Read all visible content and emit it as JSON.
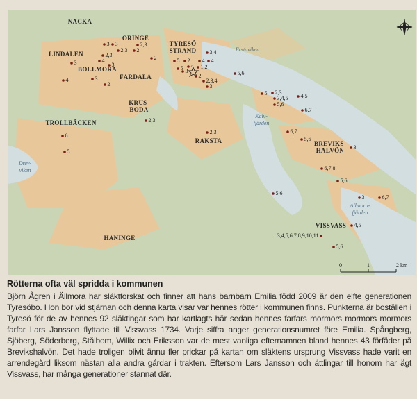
{
  "map": {
    "place_names": [
      {
        "lines": [
          "NACKA"
        ]
      },
      {
        "lines": [
          "ÖRINGE"
        ]
      },
      {
        "lines": [
          "LINDALEN"
        ]
      },
      {
        "lines": [
          "TYRESÖ",
          "STRAND"
        ]
      },
      {
        "lines": [
          "BOLLMORA"
        ]
      },
      {
        "lines": [
          "FÄRDALA"
        ]
      },
      {
        "lines": [
          "Erstaviken"
        ]
      },
      {
        "lines": [
          "KRUS-",
          "BODA"
        ]
      },
      {
        "lines": [
          "TROLLBÄCKEN"
        ]
      },
      {
        "lines": [
          "RAKSTA"
        ]
      },
      {
        "lines": [
          "Kalv-",
          "fjärden"
        ]
      },
      {
        "lines": [
          "BREVIKS-",
          "HALVÖN"
        ]
      },
      {
        "lines": [
          "Drev-",
          "viken"
        ]
      },
      {
        "lines": [
          "HANINGE"
        ]
      },
      {
        "lines": [
          "Ällmora-",
          "fjärden"
        ]
      },
      {
        "lines": [
          "VISSVASS"
        ]
      }
    ],
    "points": [
      {
        "label": "3"
      },
      {
        "label": "3"
      },
      {
        "label": "2,3"
      },
      {
        "label": "2"
      },
      {
        "label": "2,3"
      },
      {
        "label": "2,3"
      },
      {
        "label": "4"
      },
      {
        "label": "3"
      },
      {
        "label": "2"
      },
      {
        "label": "3"
      },
      {
        "label": "4"
      },
      {
        "label": "3"
      },
      {
        "label": "2"
      },
      {
        "label": "3,4"
      },
      {
        "label": "5"
      },
      {
        "label": "2"
      },
      {
        "label": "4"
      },
      {
        "label": "4"
      },
      {
        "label": "4"
      },
      {
        "label": "1,2"
      },
      {
        "label": "5"
      },
      {
        "label": "3"
      },
      {
        "label": "2"
      },
      {
        "label": "2,3,4"
      },
      {
        "label": "3"
      },
      {
        "label": "5,6"
      },
      {
        "label": "5"
      },
      {
        "label": "2,3"
      },
      {
        "label": "3,4,5"
      },
      {
        "label": "5,6"
      },
      {
        "label": "4,5"
      },
      {
        "label": "6,7"
      },
      {
        "label": "2,3"
      },
      {
        "label": "6"
      },
      {
        "label": "5"
      },
      {
        "label": "2,3"
      },
      {
        "label": "6,7"
      },
      {
        "label": "5,6"
      },
      {
        "label": "3"
      },
      {
        "label": "6,7,8"
      },
      {
        "label": "5,6"
      },
      {
        "label": "3"
      },
      {
        "label": "6,7"
      },
      {
        "label": "5,6"
      },
      {
        "label": "4,5"
      },
      {
        "label": "3,4,5,6,7,8,9,10,11"
      },
      {
        "label": "5,6"
      }
    ],
    "scale": {
      "labels": [
        "0",
        "1",
        "2 km"
      ]
    }
  },
  "caption": {
    "title": "Rötterna ofta väl spridda i kommunen",
    "body": "Björn Ågren i Ällmora har släktforskat och finner att hans barnbarn Emilia född 2009 är den elfte generationen Tyresöbo. Hon bor vid stjärnan och denna karta visar var hennes rötter i kommunen finns. Punkterna är boställen i Tyresö för de av hennes 92 släktingar som har kartlagts här sedan hennes farfars mormors mormors mormors farfar Lars Jansson flyttade till Vissvass 1734. Varje siffra anger generationsnumret före Emilia. Spångberg, Sjöberg, Söderberg, Stålbom, Willix och Eriksson var de mest vanliga efternamnen bland hennes 43 förfäder på Brevikshalvön. Det hade troligen blivit ännu fler prickar på kartan om släktens ursprung Vissvass hade varit en arrendegård liksom nästan alla andra gårdar i trakten. Eftersom Lars Jansson och ättlingar till honom har ägt Vissvass, har många generationer stannat där."
  }
}
